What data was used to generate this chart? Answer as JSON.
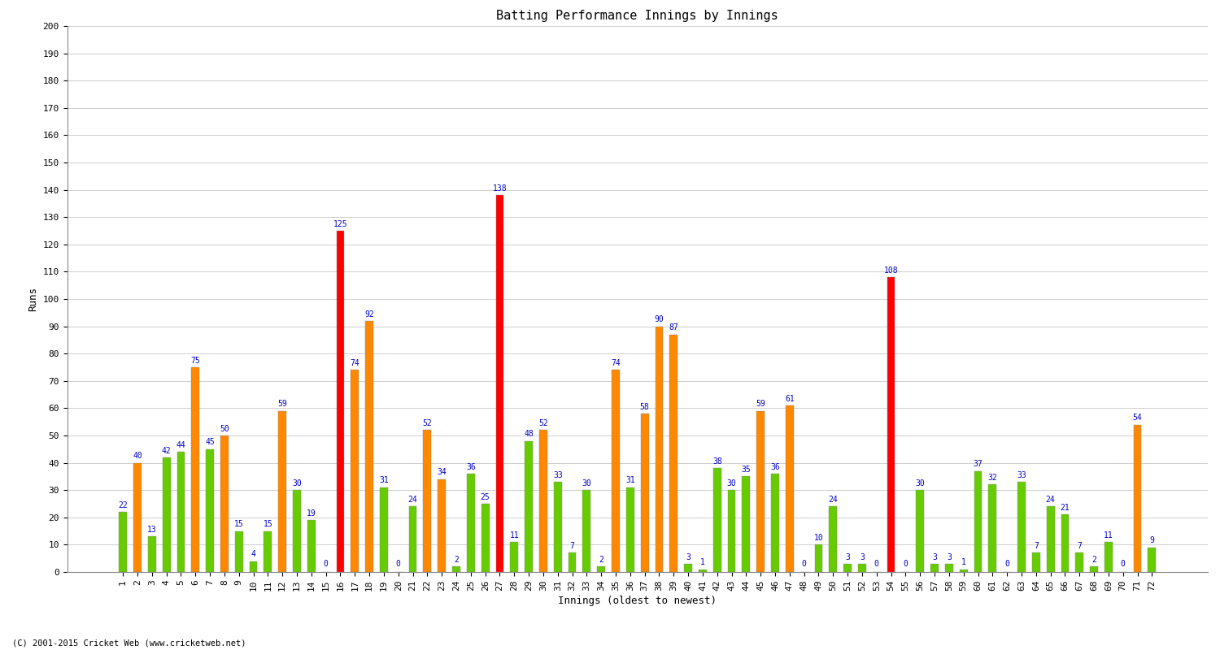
{
  "title": "Batting Performance Innings by Innings",
  "xlabel": "Innings (oldest to newest)",
  "ylabel": "Runs",
  "footer": "(C) 2001-2015 Cricket Web (www.cricketweb.net)",
  "ylim": [
    0,
    200
  ],
  "yticks": [
    0,
    10,
    20,
    30,
    40,
    50,
    60,
    70,
    80,
    90,
    100,
    110,
    120,
    130,
    140,
    150,
    160,
    170,
    180,
    190,
    200
  ],
  "innings": [
    1,
    2,
    3,
    4,
    5,
    6,
    7,
    8,
    9,
    10,
    11,
    12,
    13,
    14,
    15,
    16,
    17,
    18,
    19,
    20,
    21,
    22,
    23,
    24,
    25,
    26,
    27,
    28,
    29,
    30,
    31,
    32,
    33,
    34,
    35,
    36,
    37,
    38,
    39,
    40,
    41,
    42,
    43,
    44,
    45,
    46,
    47,
    48,
    49,
    50,
    51,
    52,
    53,
    54,
    55,
    56,
    57,
    58,
    59,
    60,
    61,
    62,
    63,
    64,
    65,
    66,
    67,
    68,
    69,
    70,
    71,
    72
  ],
  "values": [
    22,
    40,
    13,
    42,
    44,
    75,
    45,
    50,
    15,
    4,
    15,
    59,
    30,
    19,
    0,
    125,
    74,
    92,
    31,
    0,
    24,
    52,
    34,
    2,
    36,
    25,
    138,
    11,
    48,
    52,
    33,
    7,
    30,
    2,
    74,
    31,
    58,
    90,
    87,
    3,
    1,
    38,
    30,
    35,
    59,
    36,
    61,
    0,
    10,
    24,
    3,
    3,
    0,
    108,
    0,
    30,
    3,
    3,
    1,
    37,
    32,
    0,
    33,
    7,
    24,
    21,
    7,
    2,
    11,
    0,
    54,
    9
  ],
  "colors": [
    "#66cc00",
    "#ff8800",
    "#66cc00",
    "#66cc00",
    "#66cc00",
    "#ff8800",
    "#66cc00",
    "#ff8800",
    "#66cc00",
    "#66cc00",
    "#66cc00",
    "#ff8800",
    "#66cc00",
    "#66cc00",
    "#66cc00",
    "#ff0000",
    "#ff8800",
    "#ff8800",
    "#66cc00",
    "#66cc00",
    "#66cc00",
    "#ff8800",
    "#ff8800",
    "#66cc00",
    "#66cc00",
    "#66cc00",
    "#ff0000",
    "#66cc00",
    "#66cc00",
    "#ff8800",
    "#66cc00",
    "#66cc00",
    "#66cc00",
    "#66cc00",
    "#ff8800",
    "#66cc00",
    "#ff8800",
    "#ff8800",
    "#ff8800",
    "#66cc00",
    "#66cc00",
    "#66cc00",
    "#66cc00",
    "#66cc00",
    "#ff8800",
    "#66cc00",
    "#ff8800",
    "#66cc00",
    "#66cc00",
    "#66cc00",
    "#66cc00",
    "#66cc00",
    "#66cc00",
    "#ff0000",
    "#66cc00",
    "#66cc00",
    "#66cc00",
    "#66cc00",
    "#66cc00",
    "#66cc00",
    "#66cc00",
    "#66cc00",
    "#66cc00",
    "#66cc00",
    "#66cc00",
    "#66cc00",
    "#66cc00",
    "#66cc00",
    "#66cc00",
    "#66cc00",
    "#ff8800",
    "#66cc00"
  ],
  "label_color": "#0000cc",
  "bg_color": "#ffffff",
  "grid_color": "#bbbbbb",
  "bar_width": 0.55,
  "value_fontsize": 7.0,
  "tick_fontsize": 8.0,
  "axis_label_fontsize": 9,
  "title_fontsize": 11
}
